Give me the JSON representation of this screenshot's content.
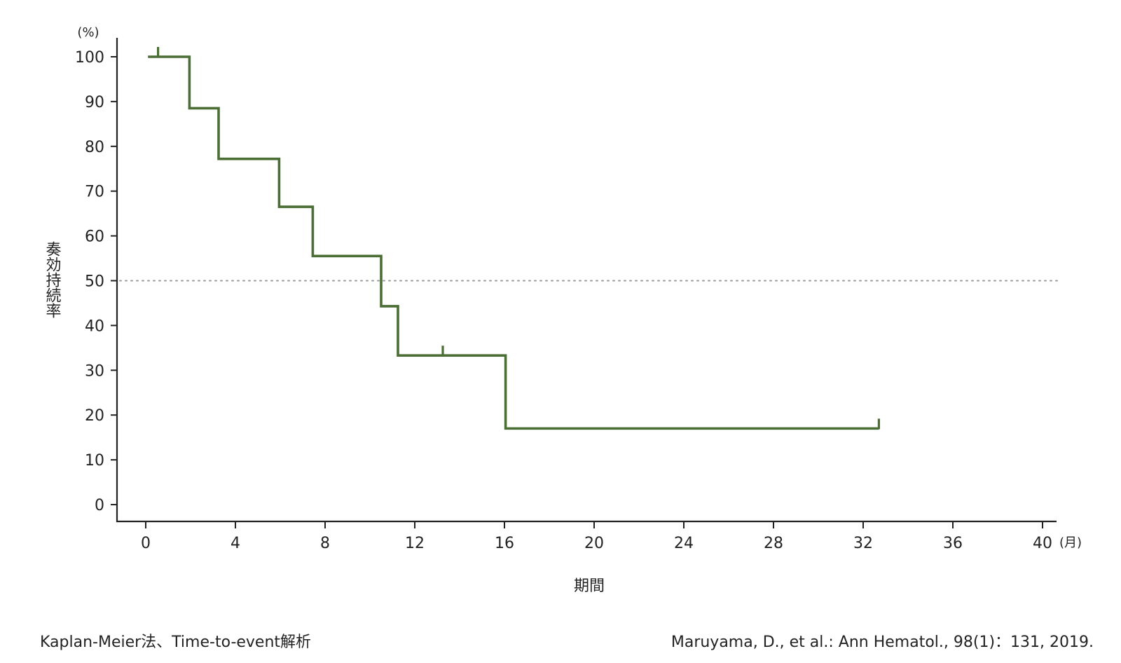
{
  "chart_data": {
    "type": "line",
    "step": true,
    "xlabel": "期間",
    "ylabel": "奏効持続率",
    "x_unit": "(月)",
    "y_unit": "(%)",
    "xlim": [
      0,
      40
    ],
    "ylim": [
      0,
      100
    ],
    "xticks": [
      0,
      4,
      8,
      12,
      16,
      20,
      24,
      28,
      32,
      36,
      40
    ],
    "yticks": [
      0,
      10,
      20,
      30,
      40,
      50,
      60,
      70,
      80,
      90,
      100
    ],
    "reference_line": {
      "y": 50,
      "style": "dotted"
    },
    "series": [
      {
        "color": "#4a6e34",
        "steps": [
          {
            "x": 0.1,
            "y": 100
          },
          {
            "x": 1.95,
            "y": 88.5
          },
          {
            "x": 3.25,
            "y": 77.2
          },
          {
            "x": 5.95,
            "y": 66.5
          },
          {
            "x": 7.45,
            "y": 55.5
          },
          {
            "x": 10.5,
            "y": 44.3
          },
          {
            "x": 11.25,
            "y": 33.3
          },
          {
            "x": 16.05,
            "y": 17.0
          }
        ],
        "end_x": 32.7,
        "censor_marks": [
          {
            "x": 0.55,
            "y": 100
          },
          {
            "x": 13.25,
            "y": 33.3
          },
          {
            "x": 32.7,
            "y": 17.0
          }
        ]
      }
    ]
  },
  "footer": {
    "method": "Kaplan-Meier法、Time-to-event解析",
    "citation": "Maruyama, D., et al.: Ann Hematol., 98(1)：131, 2019."
  }
}
